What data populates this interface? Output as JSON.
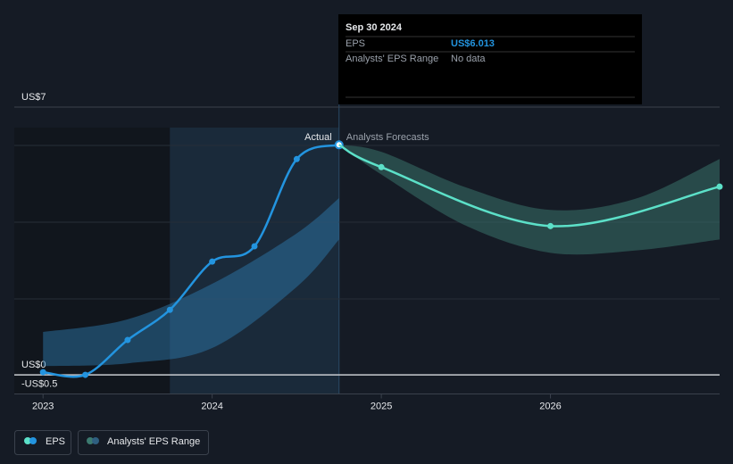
{
  "chart_data": {
    "type": "line",
    "xlim": [
      2022.83,
      2027
    ],
    "ylim": [
      -0.5,
      7
    ],
    "xticks": [
      2023,
      2024,
      2025,
      2026
    ],
    "yticks": [
      {
        "value": 7,
        "label": "US$7"
      },
      {
        "value": 0,
        "label": "US$0"
      },
      {
        "value": -0.5,
        "label": "-US$0.5"
      }
    ],
    "annotations": {
      "actual": "Actual",
      "forecast": "Analysts Forecasts"
    },
    "series": [
      {
        "name": "EPS",
        "color": "#2394df",
        "x": [
          2023,
          2023.25,
          2023.5,
          2023.75,
          2024,
          2024.25,
          2024.5,
          2024.75
        ],
        "values": [
          0.07,
          0.0,
          0.91,
          1.7,
          2.96,
          3.36,
          5.64,
          6.013
        ]
      },
      {
        "color": "#5ce0c8",
        "x": [
          2024.75,
          2025,
          2026,
          2027
        ],
        "values": [
          6.013,
          5.43,
          3.89,
          4.92
        ]
      }
    ],
    "range": {
      "name": "Analysts' EPS Range",
      "color": "#2f7fb5",
      "forecast_color": "#3c7a70",
      "bands": [
        {
          "x": [
            2023,
            2023.5,
            2024,
            2024.5,
            2024.75
          ],
          "low": [
            0.23,
            0.3,
            0.7,
            2.3,
            3.54
          ],
          "high": [
            1.12,
            1.45,
            2.38,
            3.7,
            4.62
          ]
        },
        {
          "x": [
            2024.75,
            2025,
            2025.5,
            2026,
            2026.5,
            2027
          ],
          "low": [
            6.013,
            5.24,
            3.9,
            3.19,
            3.25,
            3.54
          ],
          "high": [
            6.013,
            5.83,
            4.9,
            4.31,
            4.6,
            5.64
          ]
        }
      ]
    },
    "tooltip": {
      "date": "Sep 30 2024",
      "rows": [
        {
          "label": "EPS",
          "value_label": "US$6.013"
        },
        {
          "label": "Analysts' EPS Range",
          "value_label": "No data"
        }
      ]
    }
  }
}
